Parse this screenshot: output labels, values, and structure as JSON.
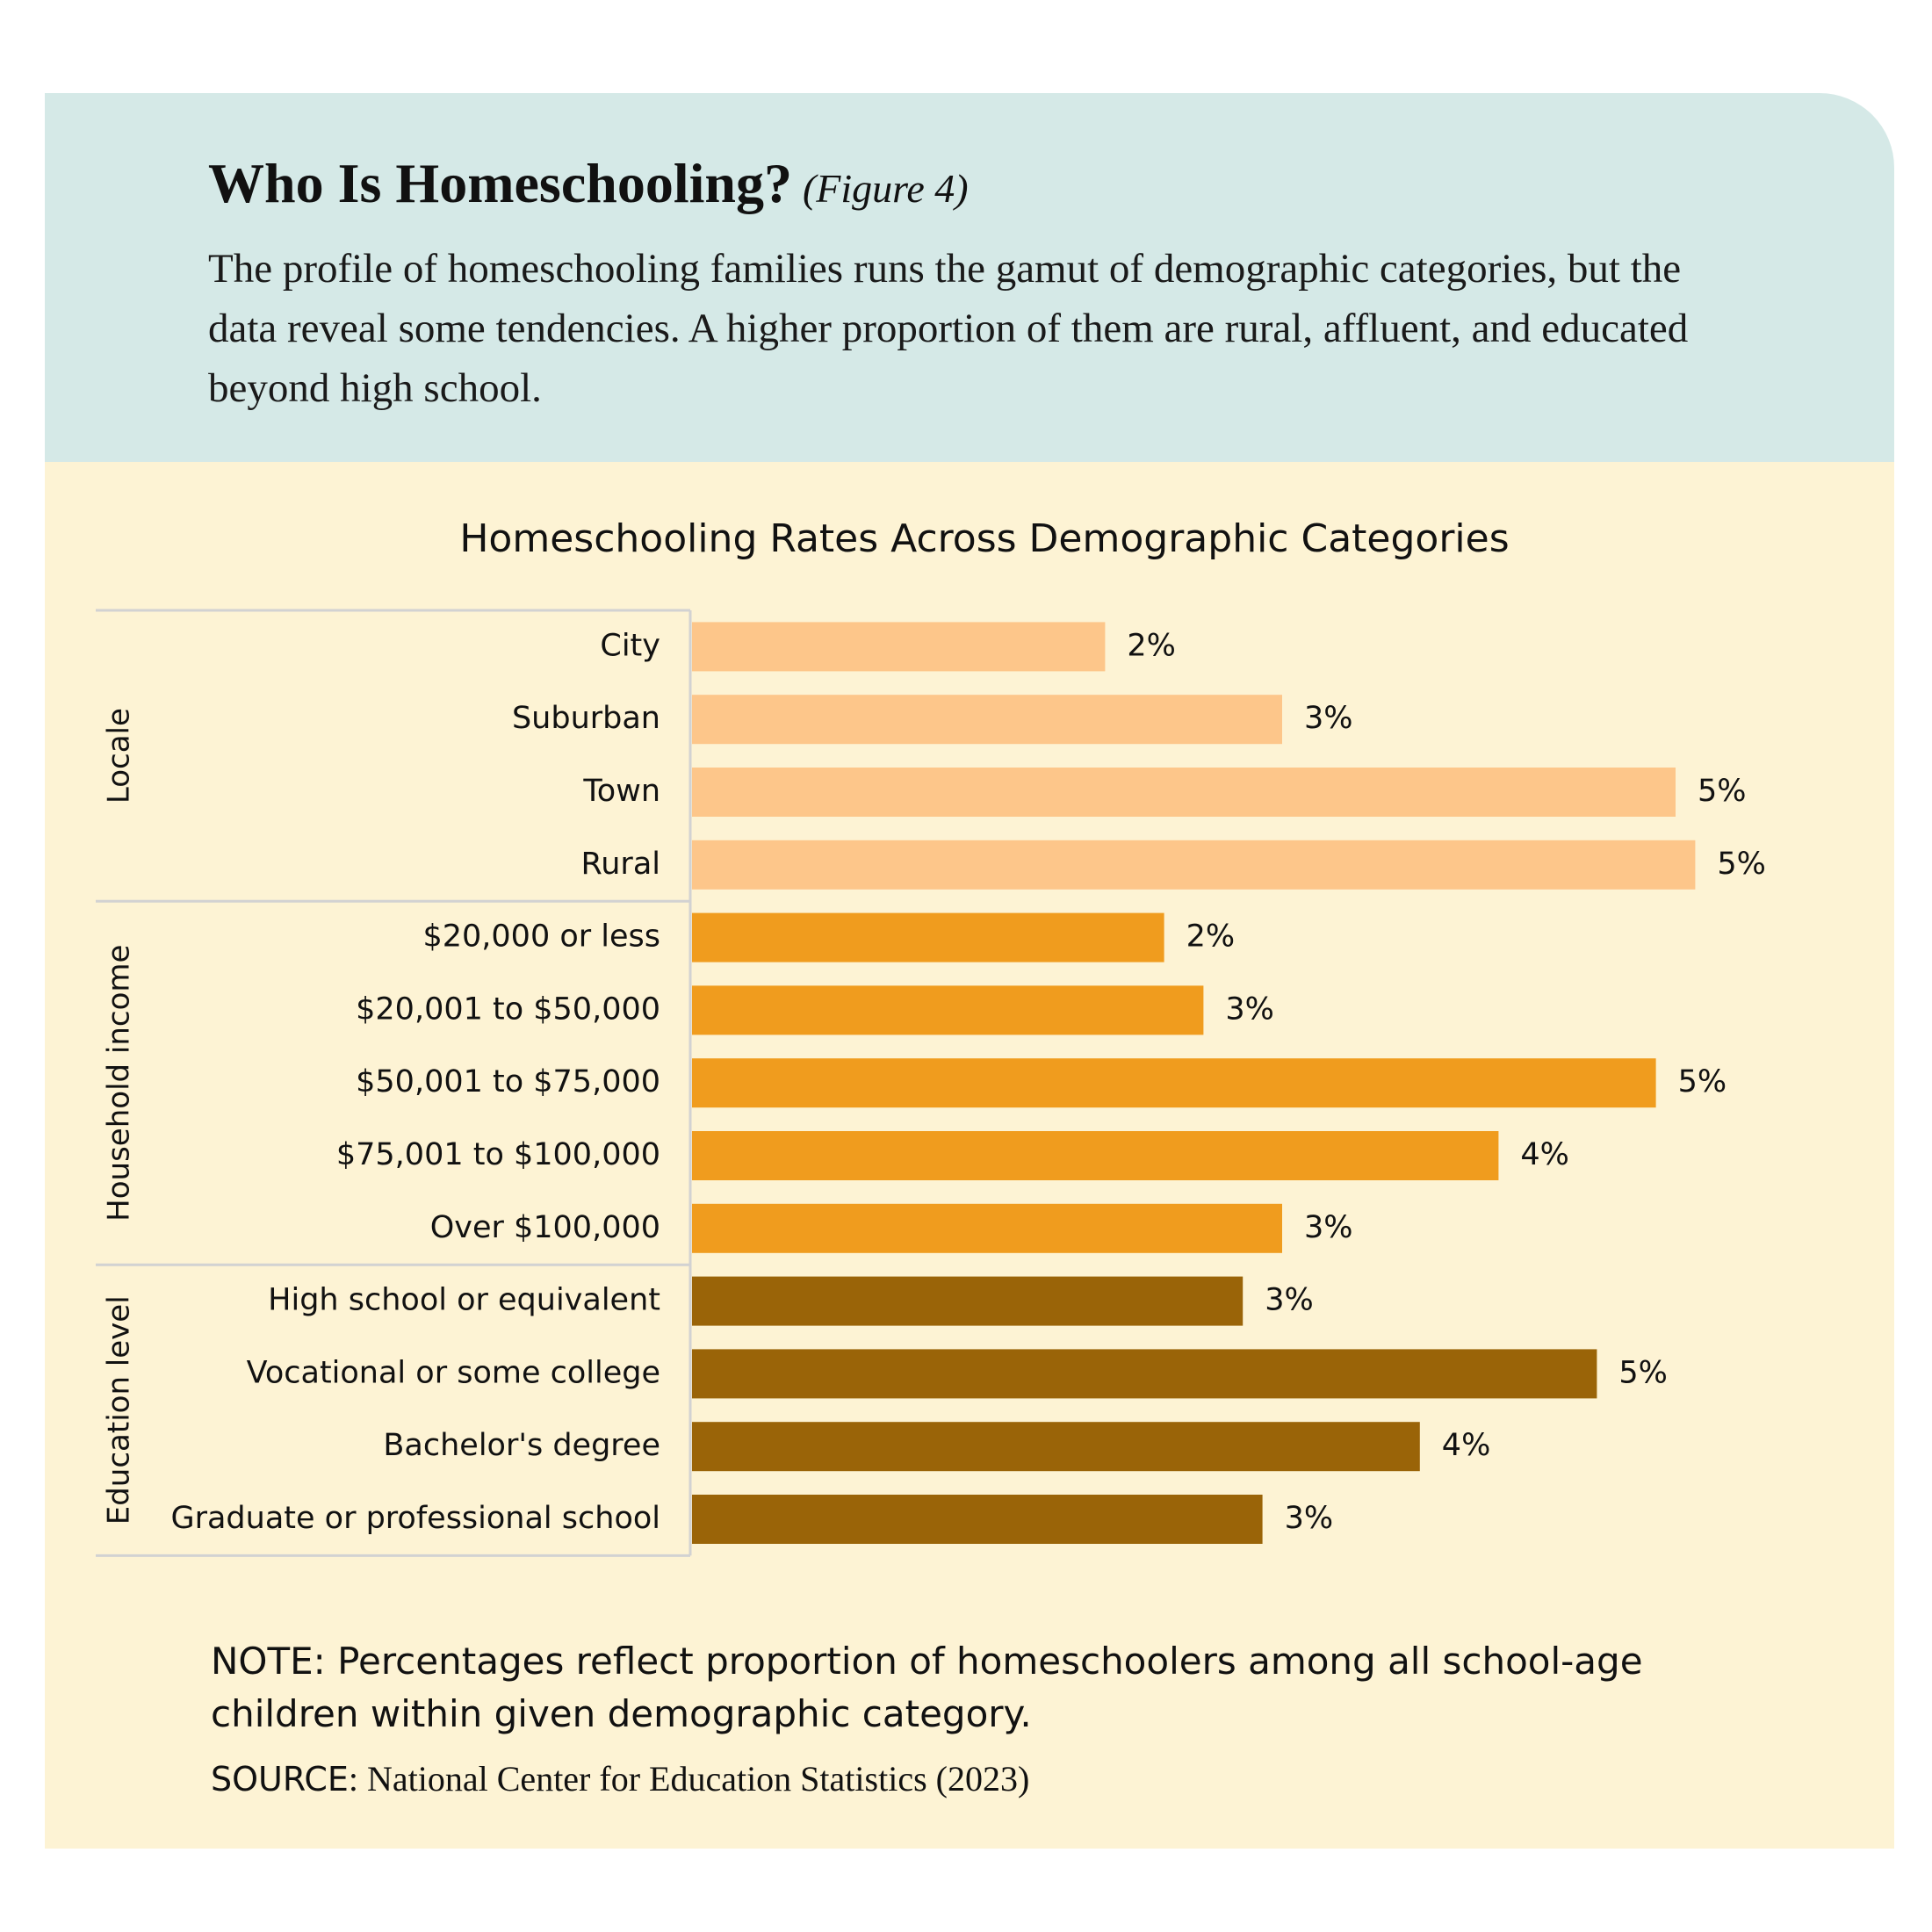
{
  "header": {
    "title": "Who Is Homeschooling?",
    "figure": "(Figure 4)",
    "intro": "The profile of homeschooling families runs the gamut of demographic categories, but the data reveal some tendencies. A higher proportion of them are rural, affluent, and educated beyond high school."
  },
  "chart_data": {
    "type": "bar",
    "orientation": "horizontal",
    "title": "Homeschooling Rates Across Demographic Categories",
    "xlim": [
      0,
      6
    ],
    "groups": [
      {
        "name": "Locale",
        "color": "#fdc68a",
        "categories": [
          "City",
          "Suburban",
          "Town",
          "Rural"
        ],
        "values": [
          2.1,
          3.0,
          5.0,
          5.1
        ],
        "value_labels": [
          "2%",
          "3%",
          "5%",
          "5%"
        ]
      },
      {
        "name": "Household income",
        "color": "#f09c1e",
        "categories": [
          "$20,000 or less",
          "$20,001 to $50,000",
          "$50,001 to $75,000",
          "$75,001 to $100,000",
          "Over $100,000"
        ],
        "values": [
          2.4,
          2.6,
          4.9,
          4.1,
          3.0
        ],
        "value_labels": [
          "2%",
          "3%",
          "5%",
          "4%",
          "3%"
        ]
      },
      {
        "name": "Education level",
        "color": "#9a6408",
        "categories": [
          "High school or equivalent",
          "Vocational or some college",
          "Bachelor's degree",
          "Graduate or professional school"
        ],
        "values": [
          2.8,
          4.6,
          3.7,
          2.9
        ],
        "value_labels": [
          "3%",
          "5%",
          "4%",
          "3%"
        ]
      }
    ]
  },
  "footer": {
    "note": "NOTE: Percentages reflect proportion of homeschoolers among all school-age children within given demographic category.",
    "source_label": "SOURCE",
    "source": ": National Center for Education Statistics (2023)"
  }
}
